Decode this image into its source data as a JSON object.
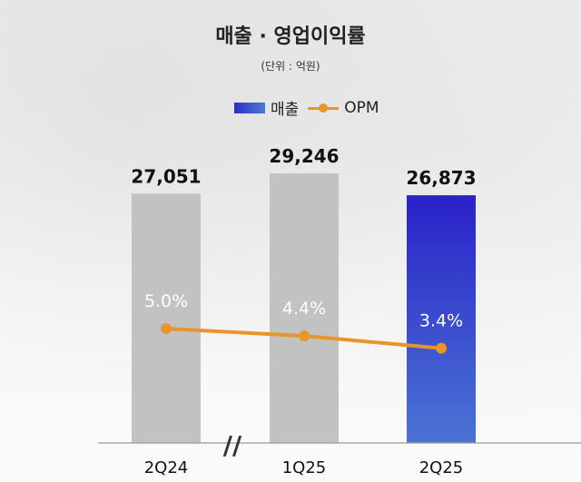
{
  "title": "매출 · 영업이익률",
  "unit": "(단위 : 억원)",
  "legend": {
    "bar": "매출",
    "line": "OPM"
  },
  "colors": {
    "bar_default": "#c2c2c2",
    "bar_highlight_top": "#2b22c9",
    "bar_highlight_bottom": "#4a74d3",
    "line": "#e8962a"
  },
  "chart_data": {
    "type": "bar",
    "categories": [
      "2Q24",
      "1Q25",
      "2Q25"
    ],
    "series": [
      {
        "name": "매출",
        "values": [
          27051,
          29246,
          26873
        ],
        "labels": [
          "27,051",
          "29,246",
          "26,873"
        ]
      },
      {
        "name": "OPM",
        "values": [
          5.0,
          4.4,
          3.4
        ],
        "labels": [
          "5.0%",
          "4.4%",
          "3.4%"
        ]
      }
    ],
    "axis_break": "//"
  }
}
